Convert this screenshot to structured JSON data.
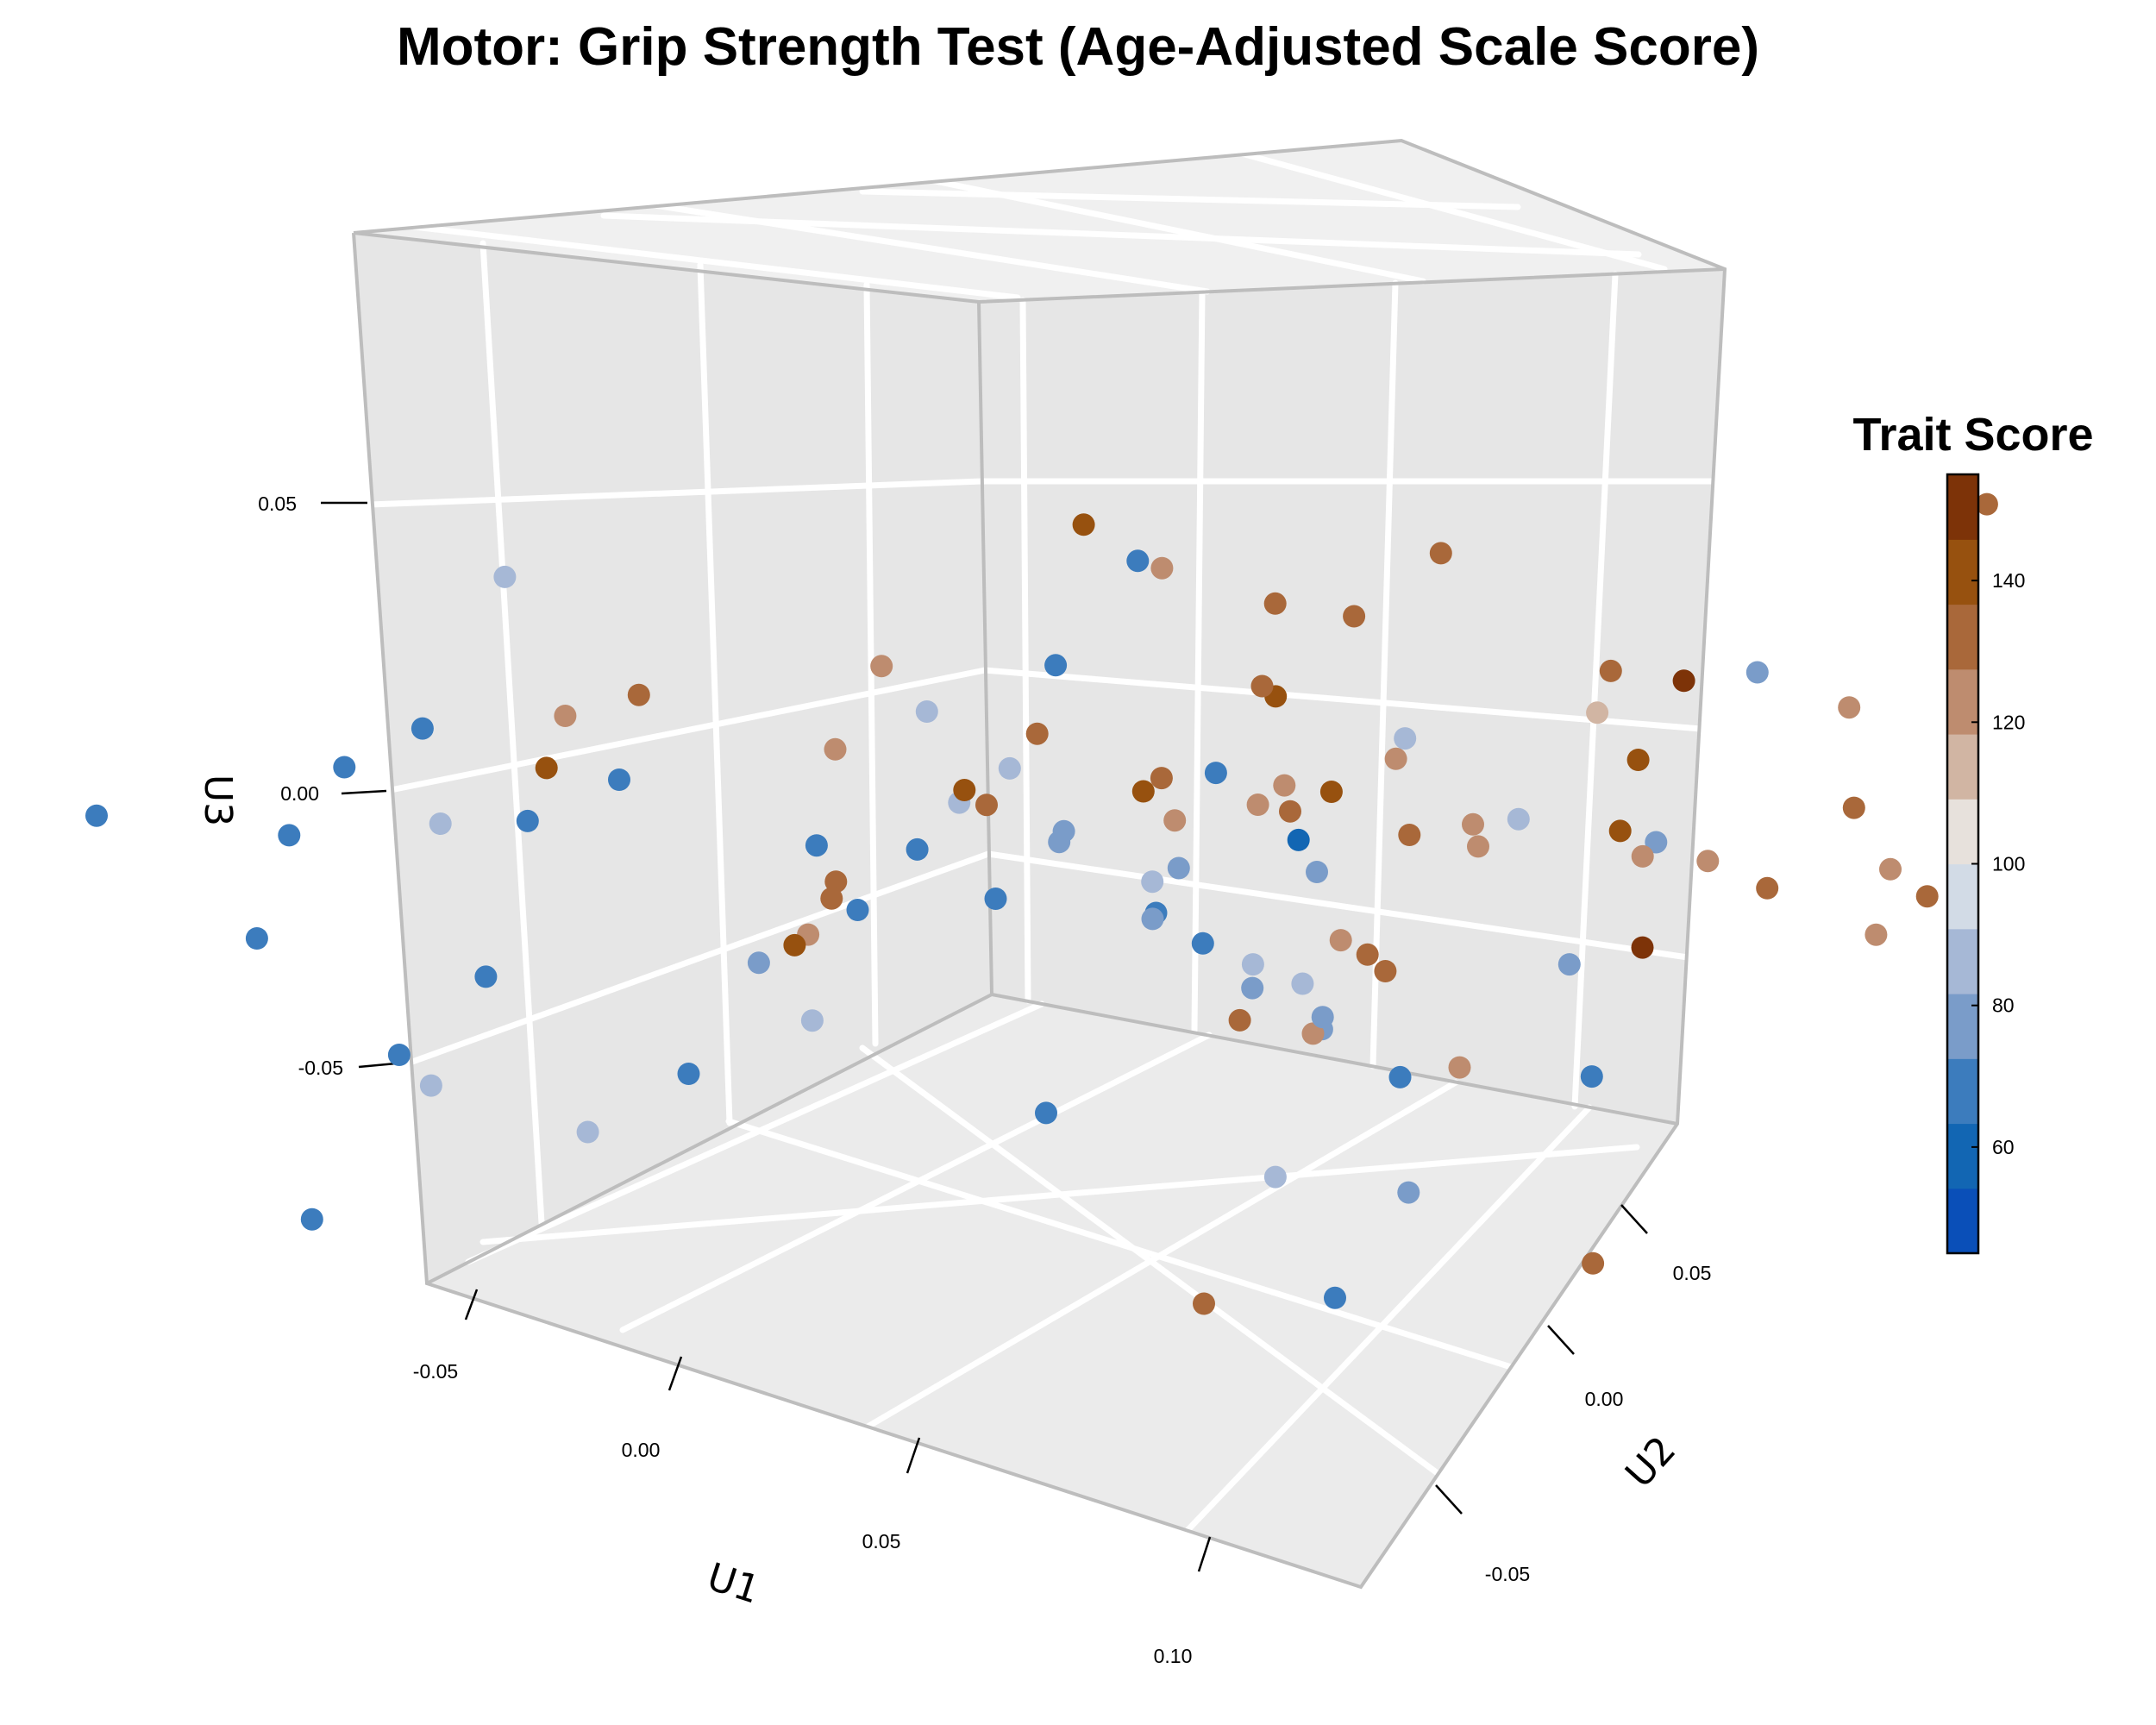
{
  "chart_data": {
    "type": "scatter3d",
    "title": "Motor: Grip Strength Test (Age-Adjusted Scale Score)",
    "axes": {
      "x": {
        "label": "U1",
        "ticks": [
          "-0.05",
          "0.00",
          "0.05",
          "0.10"
        ],
        "tick_values": [
          -0.05,
          0.0,
          0.05,
          0.1
        ],
        "range": [
          -0.06,
          0.11
        ]
      },
      "y": {
        "label": "U2",
        "ticks": [
          "-0.05",
          "0.00",
          "0.05"
        ],
        "tick_values": [
          -0.05,
          0.0,
          0.05
        ],
        "range": [
          -0.07,
          0.07
        ]
      },
      "z": {
        "label": "U3",
        "ticks": [
          "-0.05",
          "0.00",
          "0.05"
        ],
        "tick_values": [
          -0.05,
          0.0,
          0.05
        ],
        "range": [
          -0.075,
          0.09
        ]
      }
    },
    "grid": true,
    "colorbar": {
      "title": "Trait Score",
      "ticks": [
        "60",
        "80",
        "100",
        "120",
        "140"
      ],
      "tick_values": [
        60,
        80,
        100,
        120,
        140
      ],
      "range": [
        45,
        155
      ],
      "colors": [
        "#0a4fb8",
        "#1266b3",
        "#3c7cbd",
        "#7a9cc9",
        "#a6b8d6",
        "#d2dbe6",
        "#e7e1dc",
        "#d1b5a3",
        "#be8c6f",
        "#a9683a",
        "#97510f",
        "#7d3308"
      ],
      "placement": "right"
    },
    "points": [
      {
        "x": 0.101,
        "y": 0.056,
        "z": 0.072,
        "v": 134
      },
      {
        "x": 0.036,
        "y": -0.01,
        "z": 0.069,
        "v": 143
      },
      {
        "x": 0.051,
        "y": -0.009,
        "z": 0.069,
        "v": 123
      },
      {
        "x": 0.052,
        "y": 0.021,
        "z": 0.056,
        "v": 136
      },
      {
        "x": 0.071,
        "y": 0.03,
        "z": 0.041,
        "v": 136
      },
      {
        "x": 0.053,
        "y": 0.011,
        "z": 0.051,
        "v": 128
      },
      {
        "x": 0.018,
        "y": 0.005,
        "z": 0.045,
        "v": 65
      },
      {
        "x": 0.068,
        "y": 0.009,
        "z": 0.039,
        "v": 84
      },
      {
        "x": 0.071,
        "y": 0.038,
        "z": 0.035,
        "v": 153
      },
      {
        "x": 0.085,
        "y": 0.049,
        "z": 0.032,
        "v": 123
      },
      {
        "x": 0.077,
        "y": 0.043,
        "z": 0.037,
        "v": 75
      },
      {
        "x": 0.074,
        "y": 0.027,
        "z": 0.037,
        "v": 116
      },
      {
        "x": 0.022,
        "y": -0.006,
        "z": 0.035,
        "v": 72
      },
      {
        "x": 0.003,
        "y": -0.042,
        "z": 0.039,
        "v": 136
      },
      {
        "x": 0.068,
        "y": 0.008,
        "z": 0.036,
        "v": 126
      },
      {
        "x": -0.032,
        "y": -0.039,
        "z": 0.039,
        "v": 88
      },
      {
        "x": 0.012,
        "y": -0.02,
        "z": 0.037,
        "v": 125
      },
      {
        "x": 0.026,
        "y": 0.016,
        "z": 0.036,
        "v": 136
      },
      {
        "x": 0.039,
        "y": 0.008,
        "z": 0.033,
        "v": 128
      },
      {
        "x": 0.036,
        "y": 0.011,
        "z": 0.028,
        "v": 138
      },
      {
        "x": 0.048,
        "y": 0.003,
        "z": 0.02,
        "v": 126
      },
      {
        "x": 0.053,
        "y": 0.004,
        "z": 0.021,
        "v": 136
      },
      {
        "x": 0.058,
        "y": 0.006,
        "z": 0.026,
        "v": 140
      },
      {
        "x": 0.071,
        "y": 0.033,
        "z": 0.024,
        "v": 145
      },
      {
        "x": 0.075,
        "y": 0.029,
        "z": 0.016,
        "v": 138
      },
      {
        "x": 0.068,
        "y": 0.017,
        "z": 0.016,
        "v": 126
      },
      {
        "x": 0.092,
        "y": 0.046,
        "z": 0.02,
        "v": 136
      },
      {
        "x": 0.093,
        "y": 0.036,
        "z": 0.012,
        "v": 136
      },
      {
        "x": 0.066,
        "y": 0.036,
        "z": 0.003,
        "v": 123
      },
      {
        "x": 0.094,
        "y": 0.029,
        "z": 0.021,
        "v": 125
      },
      {
        "x": 0.094,
        "y": 0.053,
        "z": 0.002,
        "v": 128
      },
      {
        "x": 0.088,
        "y": 0.052,
        "z": 0.004,
        "v": 121
      },
      {
        "x": 0.063,
        "y": 0.012,
        "z": 0.018,
        "v": 130
      },
      {
        "x": 0.043,
        "y": -0.007,
        "z": 0.025,
        "v": 138
      },
      {
        "x": 0.039,
        "y": -0.003,
        "z": 0.023,
        "v": 132
      },
      {
        "x": 0.018,
        "y": -0.006,
        "z": 0.021,
        "v": 136
      },
      {
        "x": 0.026,
        "y": -0.018,
        "z": 0.022,
        "v": 145
      },
      {
        "x": 0.011,
        "y": -0.008,
        "z": 0.006,
        "v": 132
      },
      {
        "x": -0.002,
        "y": -0.018,
        "z": 0.014,
        "v": 123
      },
      {
        "x": -0.009,
        "y": -0.044,
        "z": 0.03,
        "v": 124
      },
      {
        "x": -0.019,
        "y": -0.041,
        "z": 0.014,
        "v": 138
      },
      {
        "x": 0.014,
        "y": -0.026,
        "z": 0.004,
        "v": 128
      },
      {
        "x": 0.016,
        "y": -0.008,
        "z": 0.015,
        "v": 82
      },
      {
        "x": 0.028,
        "y": 0.004,
        "z": 0.006,
        "v": 120
      },
      {
        "x": 0.026,
        "y": 0.017,
        "z": 0.004,
        "v": 125
      },
      {
        "x": 0.037,
        "y": -0.003,
        "z": 0.004,
        "v": 82
      },
      {
        "x": 0.053,
        "y": 0.024,
        "z": 0.008,
        "v": 120
      },
      {
        "x": 0.062,
        "y": 0.005,
        "z": 0.003,
        "v": 125
      },
      {
        "x": 0.059,
        "y": 0.041,
        "z": -0.001,
        "v": 80
      },
      {
        "x": 0.021,
        "y": -0.03,
        "z": 0.007,
        "v": 130
      },
      {
        "x": 0.045,
        "y": -0.007,
        "z": 0.004,
        "v": 74
      },
      {
        "x": 0.037,
        "y": 0.015,
        "z": -0.004,
        "v": 76
      },
      {
        "x": 0.027,
        "y": -0.041,
        "z": 0.005,
        "v": 75
      },
      {
        "x": 0.011,
        "y": -0.029,
        "z": -0.007,
        "v": 138
      },
      {
        "x": 0.044,
        "y": -0.001,
        "z": -0.004,
        "v": 65
      },
      {
        "x": 0.062,
        "y": 0.038,
        "z": -0.016,
        "v": 152
      },
      {
        "x": 0.052,
        "y": -0.001,
        "z": -0.013,
        "v": 133
      },
      {
        "x": 0.036,
        "y": 0.023,
        "z": -0.026,
        "v": 136
      },
      {
        "x": 0.062,
        "y": 0.018,
        "z": -0.026,
        "v": 126
      },
      {
        "x": 0.054,
        "y": 0.006,
        "z": -0.018,
        "v": 125
      },
      {
        "x": 0.046,
        "y": 0.016,
        "z": -0.014,
        "v": 130
      },
      {
        "x": 0.075,
        "y": 0.057,
        "z": -0.017,
        "v": 123
      },
      {
        "x": 0.064,
        "y": 0.029,
        "z": -0.013,
        "v": 80
      },
      {
        "x": 0.068,
        "y": -0.013,
        "z": -0.047,
        "v": 134
      },
      {
        "x": 0.061,
        "y": 0.012,
        "z": -0.025,
        "v": 68
      },
      {
        "x": 0.066,
        "y": 0.001,
        "z": -0.006,
        "v": 80
      },
      {
        "x": 0.05,
        "y": 0.009,
        "z": -0.021,
        "v": 75
      },
      {
        "x": 0.006,
        "y": -0.025,
        "z": -0.01,
        "v": 120
      },
      {
        "x": 0.041,
        "y": 0.006,
        "z": -0.013,
        "v": 86
      },
      {
        "x": -0.035,
        "y": -0.035,
        "z": -0.007,
        "v": 70
      },
      {
        "x": -0.031,
        "y": -0.027,
        "z": -0.002,
        "v": 70
      },
      {
        "x": -0.01,
        "y": -0.016,
        "z": -0.008,
        "v": 68
      },
      {
        "x": -0.008,
        "y": -0.006,
        "z": -0.013,
        "v": 72
      },
      {
        "x": -0.003,
        "y": 0.007,
        "z": -0.016,
        "v": 74
      },
      {
        "x": 0.0,
        "y": 0.006,
        "z": -0.012,
        "v": 80
      },
      {
        "x": 0.007,
        "y": -0.005,
        "z": -0.014,
        "v": 69
      },
      {
        "x": 0.018,
        "y": 0.007,
        "z": -0.017,
        "v": 64
      },
      {
        "x": 0.015,
        "y": 0.011,
        "z": -0.013,
        "v": 80
      },
      {
        "x": 0.025,
        "y": 0.014,
        "z": -0.03,
        "v": 74
      },
      {
        "x": 0.024,
        "y": 0.02,
        "z": -0.033,
        "v": 86
      },
      {
        "x": -0.013,
        "y": -0.01,
        "z": -0.024,
        "v": 70
      },
      {
        "x": -0.01,
        "y": -0.03,
        "z": -0.04,
        "v": 72
      },
      {
        "x": -0.016,
        "y": -0.038,
        "z": -0.049,
        "v": 86
      },
      {
        "x": -0.005,
        "y": -0.019,
        "z": -0.034,
        "v": 86
      },
      {
        "x": 0.012,
        "y": -0.002,
        "z": -0.05,
        "v": 70
      },
      {
        "x": 0.03,
        "y": 0.014,
        "z": -0.06,
        "v": 84
      },
      {
        "x": 0.043,
        "y": 0.022,
        "z": -0.06,
        "v": 76
      },
      {
        "x": -0.045,
        "y": -0.044,
        "z": -0.048,
        "v": 70
      },
      {
        "x": -0.046,
        "y": -0.04,
        "z": -0.056,
        "v": 88
      },
      {
        "x": -0.058,
        "y": -0.053,
        "z": -0.03,
        "v": 70
      },
      {
        "x": -0.048,
        "y": -0.033,
        "z": -0.042,
        "v": 72
      },
      {
        "x": -0.042,
        "y": -0.041,
        "z": -0.008,
        "v": 86
      },
      {
        "x": -0.053,
        "y": -0.052,
        "z": -0.01,
        "v": 66
      },
      {
        "x": -0.065,
        "y": -0.067,
        "z": -0.005,
        "v": 70
      },
      {
        "x": -0.034,
        "y": -0.047,
        "z": 0.016,
        "v": 72
      },
      {
        "x": -0.045,
        "y": -0.05,
        "z": 0.005,
        "v": 70
      },
      {
        "x": -0.052,
        "y": -0.05,
        "z": -0.077,
        "v": 70
      },
      {
        "x": 0.033,
        "y": 0.019,
        "z": -0.082,
        "v": 64
      },
      {
        "x": 0.079,
        "y": 0.024,
        "z": -0.054,
        "v": 128
      },
      {
        "x": 0.055,
        "y": 0.036,
        "z": -0.041,
        "v": 70
      },
      {
        "x": 0.011,
        "y": -0.011,
        "z": 0.008,
        "v": 84
      },
      {
        "x": 0.004,
        "y": -0.011,
        "z": 0.02,
        "v": 86
      },
      {
        "x": 0.027,
        "y": 0.009,
        "z": 0.011,
        "v": 64
      },
      {
        "x": 0.049,
        "y": 0.031,
        "z": 0.003,
        "v": 86
      },
      {
        "x": 0.035,
        "y": 0.014,
        "z": 0.001,
        "v": 62
      }
    ]
  }
}
